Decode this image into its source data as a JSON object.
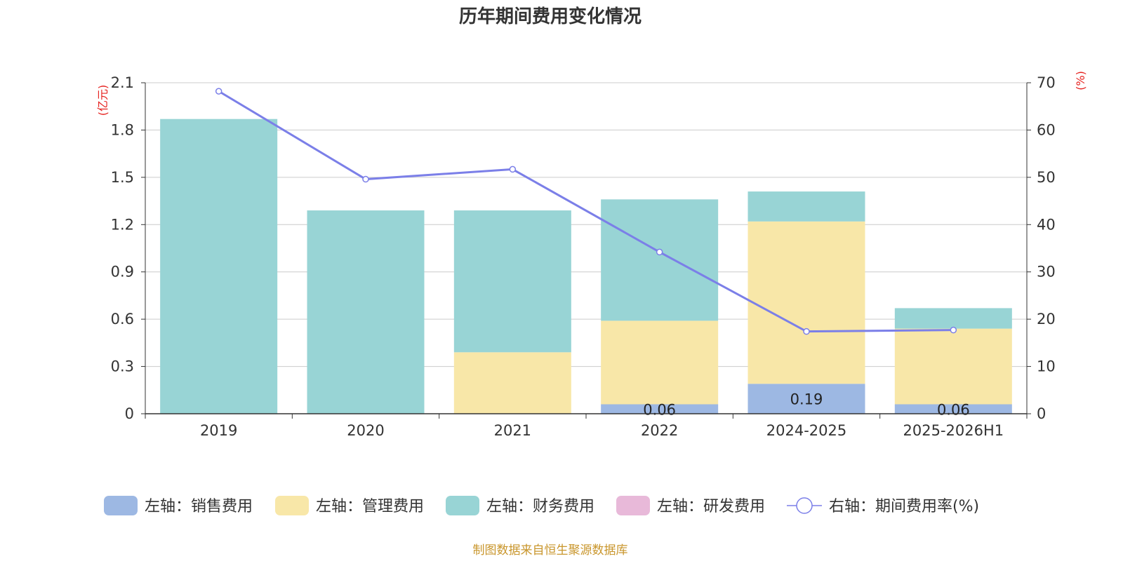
{
  "chart_data": {
    "type": "bar",
    "stacked": true,
    "title": "历年期间费用变化情况",
    "categories": [
      "2019",
      "2020",
      "2021",
      "2022",
      "2024-2025",
      "2025-2026H1"
    ],
    "series": [
      {
        "name": "左轴：销售费用",
        "axis": "left",
        "color": "#9db8e3",
        "values": [
          0,
          0,
          0,
          0.06,
          0.19,
          0.06
        ],
        "labels": [
          "",
          "",
          "",
          "0.06",
          "0.19",
          "0.06"
        ]
      },
      {
        "name": "左轴：管理费用",
        "axis": "left",
        "color": "#f8e7a8",
        "values": [
          0,
          0,
          0.39,
          0.53,
          1.03,
          0.48
        ]
      },
      {
        "name": "左轴：财务费用",
        "axis": "left",
        "color": "#98d4d5",
        "values": [
          1.87,
          1.29,
          0.9,
          0.77,
          0.19,
          0.13
        ]
      },
      {
        "name": "左轴：研发费用",
        "axis": "left",
        "color": "#e8b9d9",
        "values": [
          0,
          0,
          0,
          0,
          0,
          0
        ]
      }
    ],
    "line_series": {
      "name": "右轴：期间费用率(%)",
      "axis": "right",
      "type": "line",
      "color": "#7b7fe8",
      "values": [
        68.2,
        49.6,
        51.7,
        34.2,
        17.4,
        17.7
      ]
    },
    "left_axis": {
      "unit": "(亿元)",
      "ylim": [
        0,
        2.1
      ],
      "ticks": [
        "0",
        "0.3",
        "0.6",
        "0.9",
        "1.2",
        "1.5",
        "1.8",
        "2.1"
      ]
    },
    "right_axis": {
      "unit": "(%)",
      "ylim": [
        0,
        70
      ],
      "ticks": [
        "0",
        "10",
        "20",
        "30",
        "40",
        "50",
        "60",
        "70"
      ]
    },
    "legend_position": "bottom",
    "grid": true
  },
  "source": "制图数据来自恒生聚源数据库"
}
